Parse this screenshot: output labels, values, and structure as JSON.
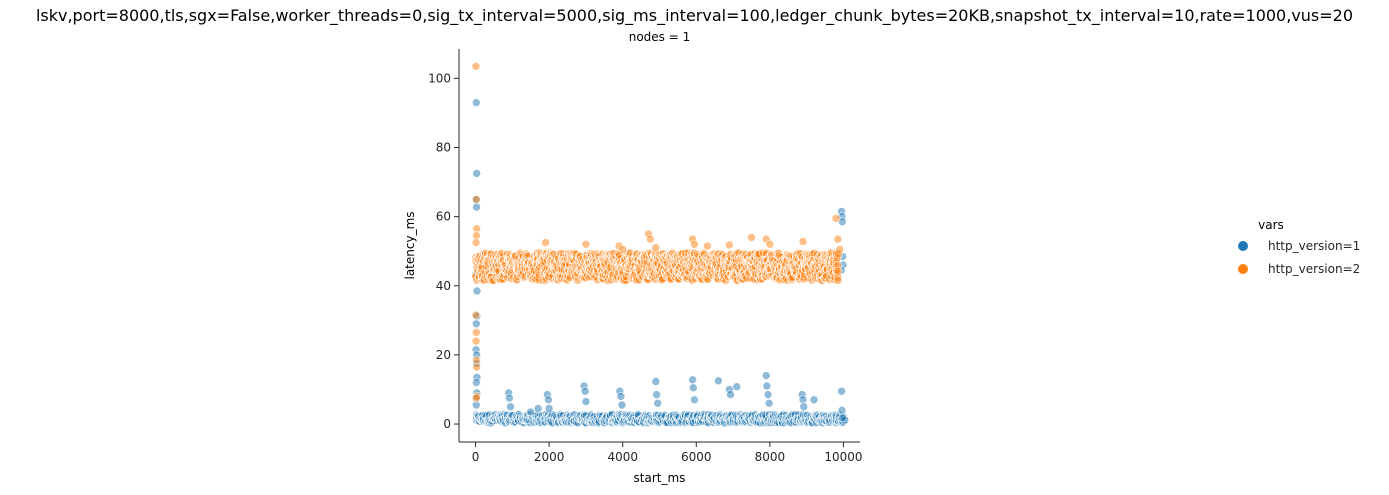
{
  "suptitle": "lskv,port=8000,tls,sgx=False,worker_threads=0,sig_tx_interval=5000,sig_ms_interval=100,ledger_chunk_bytes=20KB,snapshot_tx_interval=10,rate=1000,vus=20",
  "facet_title": "nodes = 1",
  "colors": {
    "series1": "#1f77b4",
    "series2": "#ff7f0e",
    "axis": "#262626"
  },
  "chart_data": {
    "type": "scatter",
    "xlabel": "start_ms",
    "ylabel": "latency_ms",
    "xlim": [
      -450,
      10450
    ],
    "ylim": [
      -5.2,
      108.5
    ],
    "xticks": [
      0,
      2000,
      4000,
      6000,
      8000,
      10000
    ],
    "yticks": [
      0,
      20,
      40,
      60,
      80,
      100
    ],
    "grid": false,
    "legend": {
      "title": "vars",
      "placement": "right",
      "entries": [
        "http_version=1",
        "http_version=2"
      ]
    },
    "series": [
      {
        "name": "http_version=1",
        "baseline_band": [
          0.3,
          2.8
        ],
        "points": [
          [
            20,
            93.0
          ],
          [
            30,
            72.5
          ],
          [
            15,
            65.0
          ],
          [
            25,
            62.8
          ],
          [
            10,
            43.5
          ],
          [
            40,
            38.5
          ],
          [
            35,
            31.2
          ],
          [
            20,
            29.0
          ],
          [
            15,
            21.5
          ],
          [
            30,
            20.0
          ],
          [
            25,
            17.5
          ],
          [
            40,
            13.5
          ],
          [
            20,
            12.0
          ],
          [
            35,
            9.0
          ],
          [
            30,
            7.5
          ],
          [
            20,
            5.5
          ],
          [
            900,
            9.0
          ],
          [
            920,
            7.5
          ],
          [
            950,
            5.0
          ],
          [
            1500,
            3.5
          ],
          [
            1700,
            4.5
          ],
          [
            1950,
            8.5
          ],
          [
            1980,
            7.0
          ],
          [
            2000,
            4.5
          ],
          [
            2950,
            11.0
          ],
          [
            2980,
            9.5
          ],
          [
            3000,
            6.5
          ],
          [
            3920,
            9.5
          ],
          [
            3950,
            8.0
          ],
          [
            3980,
            5.5
          ],
          [
            4900,
            12.3
          ],
          [
            4920,
            8.5
          ],
          [
            4950,
            6.0
          ],
          [
            5900,
            12.8
          ],
          [
            5920,
            10.5
          ],
          [
            5950,
            7.0
          ],
          [
            6600,
            12.5
          ],
          [
            6900,
            10.0
          ],
          [
            6930,
            8.5
          ],
          [
            7100,
            10.8
          ],
          [
            7900,
            14.0
          ],
          [
            7920,
            11.0
          ],
          [
            7950,
            8.5
          ],
          [
            7980,
            6.0
          ],
          [
            8880,
            8.5
          ],
          [
            8900,
            7.0
          ],
          [
            8920,
            5.0
          ],
          [
            9200,
            7.0
          ],
          [
            9950,
            61.5
          ],
          [
            9960,
            60.0
          ],
          [
            9970,
            58.5
          ],
          [
            9980,
            48.5
          ],
          [
            9990,
            46.0
          ],
          [
            9940,
            44.5
          ],
          [
            9950,
            9.5
          ],
          [
            9960,
            4.0
          ],
          [
            9970,
            1.8
          ]
        ]
      },
      {
        "name": "http_version=2",
        "main_band": [
          41.5,
          49.5
        ],
        "points": [
          [
            10,
            103.5
          ],
          [
            20,
            65.0
          ],
          [
            30,
            56.5
          ],
          [
            25,
            54.5
          ],
          [
            15,
            52.5
          ],
          [
            10,
            31.5
          ],
          [
            20,
            26.5
          ],
          [
            15,
            24.0
          ],
          [
            25,
            18.5
          ],
          [
            30,
            16.5
          ],
          [
            35,
            8.0
          ],
          [
            20,
            7.5
          ],
          [
            1900,
            52.5
          ],
          [
            3000,
            52.0
          ],
          [
            3900,
            51.5
          ],
          [
            4000,
            50.5
          ],
          [
            4700,
            55.0
          ],
          [
            4750,
            53.5
          ],
          [
            4900,
            51.0
          ],
          [
            5900,
            53.5
          ],
          [
            5950,
            52.0
          ],
          [
            6300,
            51.5
          ],
          [
            6900,
            51.8
          ],
          [
            7500,
            54.0
          ],
          [
            7900,
            53.5
          ],
          [
            8000,
            52.0
          ],
          [
            8900,
            52.8
          ],
          [
            9800,
            59.5
          ],
          [
            9850,
            53.5
          ],
          [
            9900,
            50.5
          ]
        ]
      }
    ]
  }
}
